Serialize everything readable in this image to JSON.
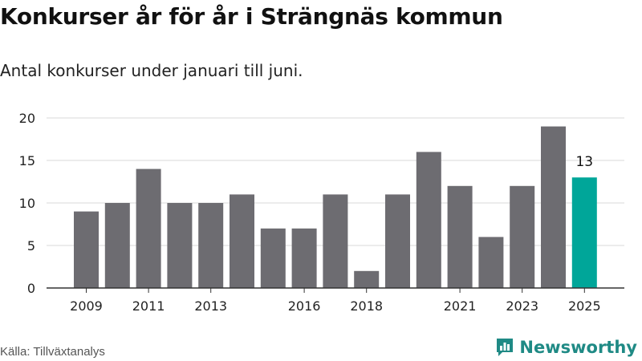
{
  "header": {
    "title": "Konkurser år för år i Strängnäs kommun",
    "subtitle": "Antal konkurser under januari till juni."
  },
  "footer": {
    "source": "Källa: Tillväxtanalys",
    "brand": "Newsworthy",
    "brand_icon": "bar-chart-icon"
  },
  "colors": {
    "bar": "#6d6c71",
    "highlight": "#00a699",
    "grid": "#d9d9d9",
    "axis": "#333333",
    "brand": "#1f8a85"
  },
  "chart_data": {
    "type": "bar",
    "categories": [
      "2009",
      "2010",
      "2011",
      "2012",
      "2013",
      "2014",
      "2015",
      "2016",
      "2017",
      "2018",
      "2019",
      "2020",
      "2021",
      "2022",
      "2023",
      "2024",
      "2025"
    ],
    "values": [
      9,
      10,
      14,
      10,
      10,
      11,
      7,
      7,
      11,
      2,
      11,
      16,
      12,
      6,
      12,
      19,
      13
    ],
    "tick_labels": [
      "2009",
      "2011",
      "2013",
      "2016",
      "2018",
      "2021",
      "2023",
      "2025"
    ],
    "highlight_index": 16,
    "data_labels": [
      {
        "category": "2025",
        "text": "13"
      }
    ],
    "ylim": [
      0,
      20
    ],
    "yticks": [
      0,
      5,
      10,
      15,
      20
    ],
    "grid": true,
    "legend": "none",
    "xlabel": "",
    "ylabel": ""
  }
}
